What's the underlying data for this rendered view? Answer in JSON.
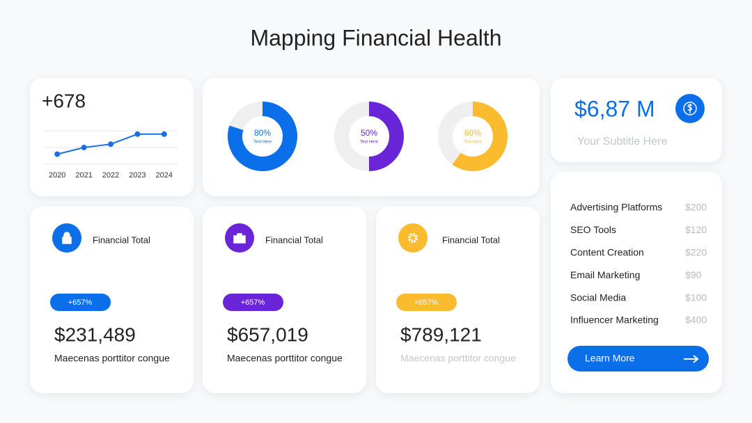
{
  "header": {
    "title": "Mapping Financial Health"
  },
  "trend_card": {
    "headline": "+678",
    "chart": {
      "type": "line",
      "x": [
        2020,
        2021,
        2022,
        2023,
        2024
      ],
      "values": [
        0.6,
        1.0,
        1.2,
        1.8,
        1.8
      ],
      "xlim": [
        2019.5,
        2024.5
      ],
      "ylim": [
        0,
        2
      ],
      "color": "#1a6fe0"
    }
  },
  "donut_card": {
    "type": "donut",
    "items": [
      {
        "value": 80,
        "value_label": "80%",
        "caption": "Text Here",
        "color": "#0a6fe8"
      },
      {
        "value": 50,
        "value_label": "50%",
        "caption": "Text Here",
        "color": "#6a25d9"
      },
      {
        "value": 60,
        "value_label": "60%",
        "caption": "Text Here",
        "color": "#fbbb2f"
      }
    ]
  },
  "summary_card": {
    "amount": "$6,87 M",
    "subtitle": "Your Subtitle Here"
  },
  "budget_card": {
    "rows": [
      [
        "Advertising Platforms",
        "$200"
      ],
      [
        "SEO Tools",
        "$120"
      ],
      [
        "Content Creation",
        "$220"
      ],
      [
        "Email Marketing",
        "$90"
      ],
      [
        "Social Media",
        "$100"
      ],
      [
        "Influencer Marketing",
        "$400"
      ]
    ],
    "button": "Learn More"
  },
  "finance_cards": [
    {
      "label": "Financial Total",
      "change": "+657%",
      "amount": "$231,489",
      "note": "Maecenas porttitor congue",
      "color": "#0a6fe8"
    },
    {
      "label": "Financial Total",
      "change": "+657%",
      "amount": "$657,019",
      "note": "Maecenas porttitor congue",
      "color": "#6a25d9"
    },
    {
      "label": "Financial Total",
      "change": "+657%",
      "amount": "$789,121",
      "note": "Maecenas porttitor congue",
      "color": "#fbbb2f"
    }
  ]
}
